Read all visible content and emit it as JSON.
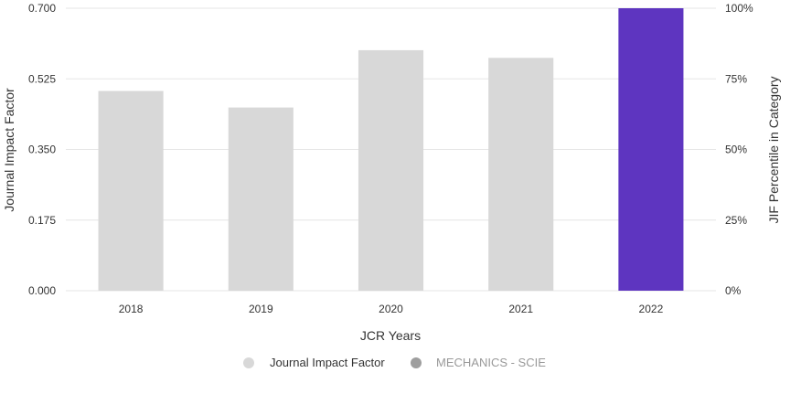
{
  "chart_data": {
    "type": "bar",
    "categories": [
      "2018",
      "2019",
      "2020",
      "2021",
      "2022"
    ],
    "series": [
      {
        "name": "Journal Impact Factor",
        "values": [
          0.495,
          0.454,
          0.596,
          0.577,
          0.7
        ],
        "colors": [
          "#d8d8d8",
          "#d8d8d8",
          "#d8d8d8",
          "#d8d8d8",
          "#5e35c0"
        ]
      }
    ],
    "xlabel": "JCR Years",
    "ylabel": "Journal Impact Factor",
    "y2label": "JIF Percentile in Category",
    "ylim": [
      0,
      0.7
    ],
    "yticks": [
      "0.000",
      "0.175",
      "0.350",
      "0.525",
      "0.700"
    ],
    "y2ticks": [
      "0%",
      "25%",
      "50%",
      "75%",
      "100%"
    ],
    "grid": true,
    "legend": {
      "position": "bottom-center",
      "items": [
        {
          "label": "Journal Impact Factor",
          "color": "#d8d8d8",
          "text_color": "#333333"
        },
        {
          "label": "MECHANICS - SCIE",
          "color": "#9e9e9e",
          "text_color": "#999999"
        }
      ]
    }
  }
}
